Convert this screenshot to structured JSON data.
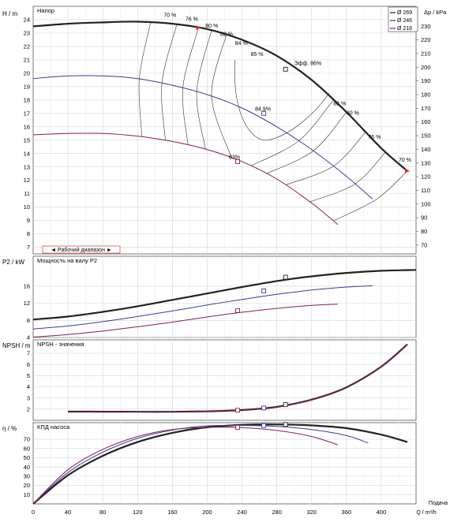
{
  "chart_data": {
    "type": "line",
    "x_axis": {
      "label": "Q / m³/h",
      "range": [
        0,
        440
      ],
      "ticks": [
        0,
        40,
        80,
        120,
        160,
        200,
        240,
        280,
        320,
        360,
        400
      ]
    },
    "x_right_label": "Подача",
    "legend": {
      "items": [
        {
          "label": "Ø 269",
          "color": "#222222"
        },
        {
          "label": "Ø 246",
          "color": "#3a3a9a"
        },
        {
          "label": "Ø 218",
          "color": "#8a1a50"
        }
      ]
    },
    "head": {
      "title": "Напор",
      "ylabel": "H / m",
      "ylabel_right": "Δp / kPa",
      "ylim": [
        6.5,
        25
      ],
      "yticks": [
        7,
        8,
        9,
        10,
        11,
        12,
        13,
        14,
        15,
        16,
        17,
        18,
        19,
        20,
        21,
        22,
        23,
        24
      ],
      "yticks_right": [
        70,
        80,
        90,
        100,
        110,
        120,
        130,
        140,
        150,
        160,
        170,
        180,
        190,
        200,
        210,
        220,
        230
      ],
      "kpa_per_m": 9.78,
      "series": [
        {
          "name": "Ø 269",
          "x": [
            0,
            40,
            80,
            120,
            160,
            200,
            240,
            280,
            320,
            360,
            400,
            430
          ],
          "y": [
            23.5,
            23.7,
            23.8,
            23.85,
            23.7,
            23.3,
            22.5,
            21.3,
            19.5,
            17.1,
            14.4,
            12.7
          ],
          "bep": [
            290,
            20.3
          ]
        },
        {
          "name": "Ø 246",
          "x": [
            0,
            40,
            80,
            120,
            160,
            200,
            240,
            280,
            320,
            360,
            390
          ],
          "y": [
            19.6,
            19.8,
            19.8,
            19.6,
            19.1,
            18.4,
            17.4,
            16.0,
            14.3,
            12.3,
            10.6
          ],
          "bep": [
            265,
            17.0
          ]
        },
        {
          "name": "Ø 218",
          "x": [
            0,
            40,
            80,
            120,
            160,
            200,
            240,
            280,
            320,
            350
          ],
          "y": [
            15.4,
            15.5,
            15.5,
            15.3,
            14.9,
            14.3,
            13.4,
            12.1,
            10.3,
            8.7
          ],
          "bep": [
            235,
            13.4
          ]
        }
      ],
      "eff_labels": [
        "70 %",
        "76 %",
        "80 %",
        "82 %",
        "84 %",
        "85 %",
        "Эфф.  86%",
        "82 %",
        "80 %",
        "76 %",
        "70 %"
      ],
      "bep_labels": [
        "84.9%",
        "83%"
      ],
      "operating_range": {
        "label": "Рабочий диапазон",
        "qmin": 190,
        "qmax": 430
      }
    },
    "power": {
      "title": "Мощность на валу P2",
      "ylabel": "P2 / kW",
      "ylim": [
        4,
        23
      ],
      "yticks": [
        4,
        8,
        12,
        16
      ],
      "series": [
        {
          "name": "Ø 269",
          "x": [
            0,
            40,
            80,
            120,
            160,
            200,
            240,
            280,
            320,
            360,
            400,
            440
          ],
          "y": [
            8.2,
            8.9,
            10.0,
            11.3,
            12.8,
            14.3,
            15.8,
            17.2,
            18.3,
            19.1,
            19.6,
            19.8
          ],
          "bep": [
            290,
            18.1
          ]
        },
        {
          "name": "Ø 246",
          "x": [
            0,
            40,
            80,
            120,
            160,
            200,
            240,
            280,
            320,
            360,
            390
          ],
          "y": [
            6.0,
            6.7,
            7.7,
            8.9,
            10.2,
            11.6,
            12.9,
            14.1,
            15.1,
            15.8,
            16.1
          ],
          "bep": [
            265,
            14.9
          ]
        },
        {
          "name": "Ø 218",
          "x": [
            0,
            40,
            80,
            120,
            160,
            200,
            240,
            280,
            320,
            350
          ],
          "y": [
            4.1,
            4.7,
            5.5,
            6.5,
            7.6,
            8.8,
            9.9,
            10.8,
            11.5,
            11.8
          ],
          "bep": [
            235,
            10.3
          ]
        }
      ]
    },
    "npsh": {
      "title": "NPSH - значения",
      "ylabel": "NPSH / m",
      "ylim": [
        1,
        8.2
      ],
      "yticks": [
        2,
        3,
        4,
        5,
        6,
        7
      ],
      "series": [
        {
          "name": "Ø 269",
          "x": [
            40,
            80,
            120,
            160,
            200,
            240,
            280,
            320,
            360,
            400,
            430
          ],
          "y": [
            1.78,
            1.77,
            1.76,
            1.76,
            1.8,
            1.92,
            2.2,
            2.85,
            3.95,
            5.8,
            7.8
          ],
          "bep": [
            290,
            2.4
          ]
        },
        {
          "name": "Ø 246",
          "x": [
            40,
            80,
            120,
            160,
            200,
            240,
            280,
            320,
            360,
            400,
            430
          ],
          "y": [
            1.78,
            1.77,
            1.76,
            1.76,
            1.8,
            1.92,
            2.2,
            2.85,
            3.95,
            5.8,
            7.8
          ],
          "bep": [
            265,
            2.1
          ]
        },
        {
          "name": "Ø 218",
          "x": [
            40,
            80,
            120,
            160,
            200,
            240,
            280,
            320,
            360,
            400,
            430
          ],
          "y": [
            1.78,
            1.77,
            1.76,
            1.76,
            1.8,
            1.92,
            2.2,
            2.85,
            3.95,
            5.8,
            7.8
          ],
          "bep": [
            235,
            1.9
          ]
        }
      ]
    },
    "efficiency": {
      "title": "КПД насоса",
      "ylabel": "η / %",
      "ylim": [
        0,
        88
      ],
      "yticks": [
        10,
        20,
        30,
        40,
        50,
        60,
        70
      ],
      "series": [
        {
          "name": "Ø 269",
          "x": [
            0,
            40,
            80,
            120,
            160,
            200,
            240,
            280,
            320,
            360,
            400,
            430
          ],
          "y": [
            0,
            31,
            52,
            67,
            77,
            83,
            85.5,
            86,
            85,
            82,
            75,
            67
          ],
          "bep": [
            290,
            86
          ]
        },
        {
          "name": "Ø 246",
          "x": [
            0,
            40,
            80,
            120,
            160,
            200,
            240,
            280,
            320,
            360,
            385
          ],
          "y": [
            0,
            34,
            56,
            71,
            80,
            84.5,
            84.9,
            84,
            80.5,
            74,
            66
          ],
          "bep": [
            265,
            84.9
          ]
        },
        {
          "name": "Ø 218",
          "x": [
            0,
            40,
            80,
            120,
            160,
            200,
            240,
            280,
            320,
            350
          ],
          "y": [
            0,
            37,
            59,
            73,
            80.5,
            83,
            82.5,
            79.5,
            73,
            64
          ],
          "bep": [
            235,
            83
          ]
        }
      ]
    }
  }
}
